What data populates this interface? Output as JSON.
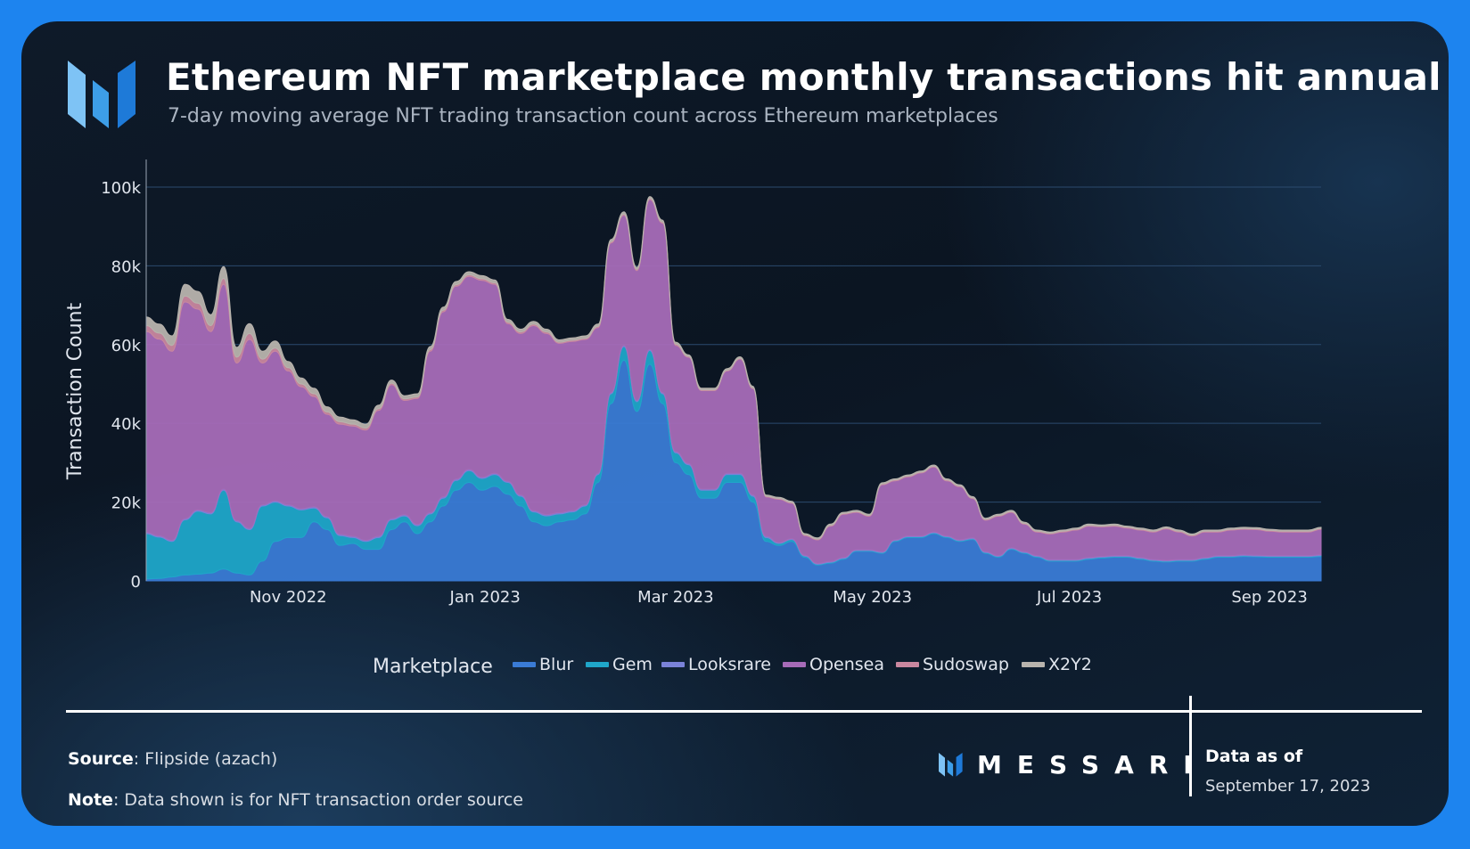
{
  "header": {
    "title": "Ethereum NFT marketplace monthly transactions hit annual low",
    "subtitle": "7-day moving average NFT trading transaction count across Ethereum marketplaces"
  },
  "footer": {
    "source_label": "Source",
    "source_text": "Flipside (azach)",
    "note_label": "Note",
    "note_text": "Data shown is for NFT transaction order source",
    "brand": "MESSARI",
    "asof_label": "Data as of",
    "asof_date": "September 17, 2023"
  },
  "colors": {
    "background": "#0b1522",
    "frame": "#1d84ef",
    "grid": "#2b4a6e",
    "axis_text": "#e1e6ee"
  },
  "chart_data": {
    "type": "area",
    "stacked": true,
    "ylabel": "Transaction Count",
    "xlabel": "",
    "ylim": [
      0,
      107000
    ],
    "yticks": [
      0,
      20000,
      40000,
      60000,
      80000,
      100000
    ],
    "ytick_labels": [
      "0",
      "20k",
      "40k",
      "60k",
      "80k",
      "100k"
    ],
    "xlim": [
      "2022-09-18",
      "2023-09-17"
    ],
    "xticks": [
      "2022-11-01",
      "2023-01-01",
      "2023-03-01",
      "2023-05-01",
      "2023-07-01",
      "2023-09-01"
    ],
    "xtick_labels": [
      "Nov 2022",
      "Jan 2023",
      "Mar 2023",
      "May 2023",
      "Jul 2023",
      "Sep 2023"
    ],
    "legend_title": "Marketplace",
    "legend_position": "bottom",
    "x": [
      "2022-09-18",
      "2022-09-22",
      "2022-09-26",
      "2022-09-30",
      "2022-10-04",
      "2022-10-08",
      "2022-10-12",
      "2022-10-16",
      "2022-10-20",
      "2022-10-24",
      "2022-10-28",
      "2022-11-01",
      "2022-11-05",
      "2022-11-09",
      "2022-11-13",
      "2022-11-17",
      "2022-11-21",
      "2022-11-25",
      "2022-11-29",
      "2022-12-03",
      "2022-12-07",
      "2022-12-11",
      "2022-12-15",
      "2022-12-19",
      "2022-12-23",
      "2022-12-27",
      "2022-12-31",
      "2023-01-04",
      "2023-01-08",
      "2023-01-12",
      "2023-01-16",
      "2023-01-20",
      "2023-01-24",
      "2023-01-28",
      "2023-02-01",
      "2023-02-05",
      "2023-02-09",
      "2023-02-13",
      "2023-02-17",
      "2023-02-21",
      "2023-02-25",
      "2023-03-01",
      "2023-03-05",
      "2023-03-09",
      "2023-03-13",
      "2023-03-17",
      "2023-03-21",
      "2023-03-25",
      "2023-03-29",
      "2023-04-02",
      "2023-04-06",
      "2023-04-10",
      "2023-04-14",
      "2023-04-18",
      "2023-04-22",
      "2023-04-26",
      "2023-04-30",
      "2023-05-04",
      "2023-05-08",
      "2023-05-12",
      "2023-05-16",
      "2023-05-20",
      "2023-05-24",
      "2023-05-28",
      "2023-06-01",
      "2023-06-05",
      "2023-06-09",
      "2023-06-13",
      "2023-06-17",
      "2023-06-21",
      "2023-06-25",
      "2023-06-29",
      "2023-07-03",
      "2023-07-07",
      "2023-07-11",
      "2023-07-15",
      "2023-07-19",
      "2023-07-23",
      "2023-07-27",
      "2023-07-31",
      "2023-08-04",
      "2023-08-08",
      "2023-08-12",
      "2023-08-16",
      "2023-08-20",
      "2023-08-24",
      "2023-08-28",
      "2023-09-01",
      "2023-09-05",
      "2023-09-09",
      "2023-09-13",
      "2023-09-17"
    ],
    "series": [
      {
        "name": "Blur",
        "color": "#3a7bd5",
        "values": [
          500,
          600,
          1000,
          1500,
          1700,
          2000,
          3000,
          2000,
          1500,
          5000,
          10000,
          11000,
          11000,
          15000,
          13000,
          9000,
          9500,
          8000,
          8000,
          13000,
          15000,
          12000,
          15000,
          19000,
          23000,
          25000,
          23000,
          24000,
          22000,
          19000,
          15000,
          14000,
          15000,
          15500,
          17000,
          25000,
          45000,
          56000,
          43000,
          55000,
          45000,
          30000,
          27000,
          21000,
          21000,
          25000,
          25000,
          20000,
          10000,
          9000,
          10000,
          6000,
          4000,
          4500,
          5500,
          7500,
          7500,
          7000,
          10000,
          11000,
          11000,
          12000,
          11000,
          10000,
          10500,
          7000,
          6000,
          8000,
          7000,
          6000,
          5000,
          5000,
          5000,
          5500,
          5800,
          6000,
          6000,
          5500,
          5000,
          4800,
          5000,
          5000,
          5500,
          6000,
          6000,
          6200,
          6100,
          6000,
          6000,
          6000,
          6000,
          6200
        ]
      },
      {
        "name": "Gem",
        "color": "#1fa6c9",
        "values": [
          11500,
          10500,
          9000,
          14000,
          16000,
          15000,
          20000,
          13000,
          11500,
          14000,
          10000,
          8000,
          7000,
          3500,
          3000,
          2500,
          1500,
          2000,
          3000,
          2500,
          1500,
          2000,
          2000,
          2000,
          2500,
          3000,
          3000,
          3000,
          3000,
          2500,
          2500,
          2500,
          2000,
          2000,
          2000,
          2000,
          2500,
          3500,
          2500,
          3500,
          2500,
          2500,
          2500,
          2000,
          2000,
          2000,
          2000,
          1500,
          1000,
          500,
          500,
          300,
          200,
          200,
          200,
          200,
          200,
          200,
          200,
          200,
          200,
          200,
          200,
          200,
          200,
          200,
          200,
          200,
          200,
          200,
          200,
          200,
          200,
          200,
          200,
          200,
          200,
          200,
          200,
          200,
          200,
          200,
          200,
          200,
          200,
          200,
          200,
          200,
          200,
          200,
          200,
          200
        ]
      },
      {
        "name": "Looksrare",
        "color": "#7a82d8",
        "values": [
          300,
          300,
          300,
          300,
          300,
          300,
          300,
          300,
          300,
          300,
          300,
          300,
          300,
          300,
          300,
          300,
          300,
          300,
          300,
          300,
          300,
          300,
          300,
          300,
          300,
          300,
          300,
          300,
          300,
          300,
          300,
          300,
          300,
          300,
          300,
          300,
          300,
          300,
          300,
          300,
          300,
          300,
          300,
          300,
          300,
          300,
          300,
          300,
          300,
          200,
          200,
          200,
          200,
          200,
          200,
          200,
          200,
          200,
          200,
          200,
          200,
          200,
          200,
          200,
          200,
          200,
          200,
          200,
          200,
          200,
          200,
          200,
          200,
          200,
          200,
          200,
          200,
          200,
          200,
          200,
          200,
          200,
          200,
          200,
          200,
          200,
          200,
          200,
          200,
          200,
          200,
          200
        ]
      },
      {
        "name": "Opensea",
        "color": "#a66bb8",
        "values": [
          51000,
          50000,
          48000,
          55000,
          51000,
          46000,
          52000,
          40000,
          48000,
          36000,
          38000,
          34000,
          31000,
          28000,
          26000,
          28000,
          28000,
          28000,
          32000,
          34000,
          29000,
          32000,
          41000,
          47000,
          49000,
          49000,
          50000,
          48000,
          40000,
          41000,
          47000,
          46000,
          43000,
          43000,
          42000,
          37000,
          38000,
          33000,
          33000,
          38000,
          43000,
          27000,
          27000,
          25000,
          25000,
          26000,
          29000,
          27000,
          10000,
          11000,
          9000,
          5000,
          6000,
          9000,
          11000,
          9500,
          8500,
          17000,
          15000,
          15000,
          16000,
          16500,
          14000,
          13500,
          10000,
          8000,
          10000,
          9000,
          7000,
          6000,
          6500,
          7000,
          7500,
          8000,
          7500,
          7500,
          7000,
          7000,
          7000,
          8000,
          7000,
          6000,
          6500,
          6000,
          6500,
          6500,
          6500,
          6200,
          6000,
          6000,
          6000,
          6500
        ]
      },
      {
        "name": "Sudoswap",
        "color": "#c9879f",
        "values": [
          1500,
          1500,
          1500,
          1500,
          1500,
          1500,
          1500,
          1500,
          1500,
          1000,
          800,
          800,
          700,
          700,
          600,
          600,
          500,
          500,
          400,
          400,
          400,
          400,
          400,
          400,
          400,
          400,
          400,
          400,
          400,
          400,
          400,
          400,
          300,
          300,
          300,
          300,
          300,
          300,
          300,
          300,
          300,
          300,
          200,
          200,
          200,
          200,
          200,
          200,
          200,
          200,
          200,
          200,
          200,
          200,
          200,
          200,
          200,
          200,
          200,
          200,
          200,
          200,
          200,
          200,
          200,
          200,
          200,
          200,
          200,
          200,
          200,
          200,
          200,
          200,
          200,
          200,
          200,
          200,
          200,
          200,
          200,
          200,
          200,
          200,
          200,
          200,
          200,
          200,
          200,
          200,
          200,
          200
        ]
      },
      {
        "name": "X2Y2",
        "color": "#b8b3ad",
        "values": [
          2200,
          2300,
          2400,
          3000,
          3000,
          2800,
          3000,
          2500,
          2500,
          2000,
          1800,
          1600,
          1500,
          1400,
          1300,
          1200,
          1100,
          1000,
          900,
          800,
          800,
          800,
          800,
          800,
          800,
          800,
          800,
          700,
          700,
          700,
          700,
          700,
          600,
          600,
          600,
          600,
          600,
          600,
          500,
          500,
          500,
          500,
          400,
          400,
          400,
          400,
          400,
          400,
          300,
          300,
          300,
          300,
          300,
          300,
          300,
          300,
          300,
          300,
          300,
          300,
          300,
          300,
          300,
          300,
          300,
          300,
          300,
          300,
          300,
          300,
          300,
          300,
          300,
          300,
          300,
          300,
          300,
          300,
          300,
          300,
          300,
          300,
          300,
          300,
          300,
          300,
          300,
          300,
          300,
          300,
          300,
          300
        ]
      }
    ]
  }
}
